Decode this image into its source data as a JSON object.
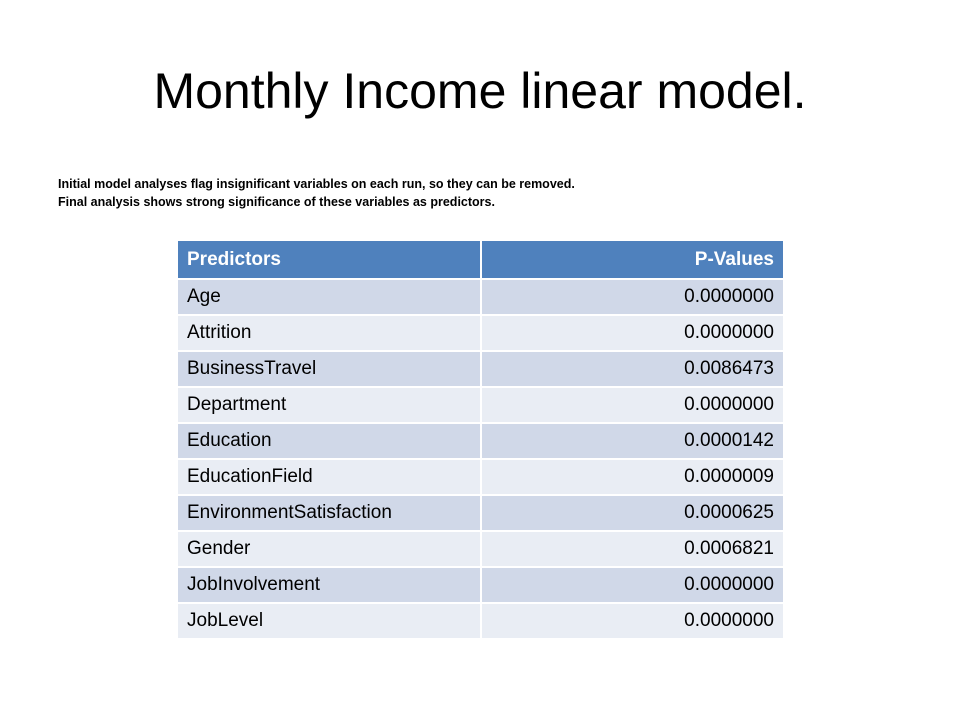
{
  "slide": {
    "title": "Monthly Income linear model.",
    "notes": [
      "Initial model analyses flag insignificant variables on each run, so they can be removed.",
      "Final analysis shows strong significance of these variables as predictors."
    ]
  },
  "table": {
    "headers": [
      "Predictors",
      "P-Values"
    ],
    "rows": [
      {
        "predictor": "Age",
        "p_value": "0.0000000"
      },
      {
        "predictor": "Attrition",
        "p_value": "0.0000000"
      },
      {
        "predictor": "BusinessTravel",
        "p_value": "0.0086473"
      },
      {
        "predictor": "Department",
        "p_value": "0.0000000"
      },
      {
        "predictor": "Education",
        "p_value": "0.0000142"
      },
      {
        "predictor": "EducationField",
        "p_value": "0.0000009"
      },
      {
        "predictor": "EnvironmentSatisfaction",
        "p_value": "0.0000625"
      },
      {
        "predictor": "Gender",
        "p_value": "0.0006821"
      },
      {
        "predictor": "JobInvolvement",
        "p_value": "0.0000000"
      },
      {
        "predictor": "JobLevel",
        "p_value": "0.0000000"
      }
    ]
  },
  "colors": {
    "header_bg": "#4f81bd",
    "row_odd_bg": "#d0d8e8",
    "row_even_bg": "#e9edf4"
  }
}
